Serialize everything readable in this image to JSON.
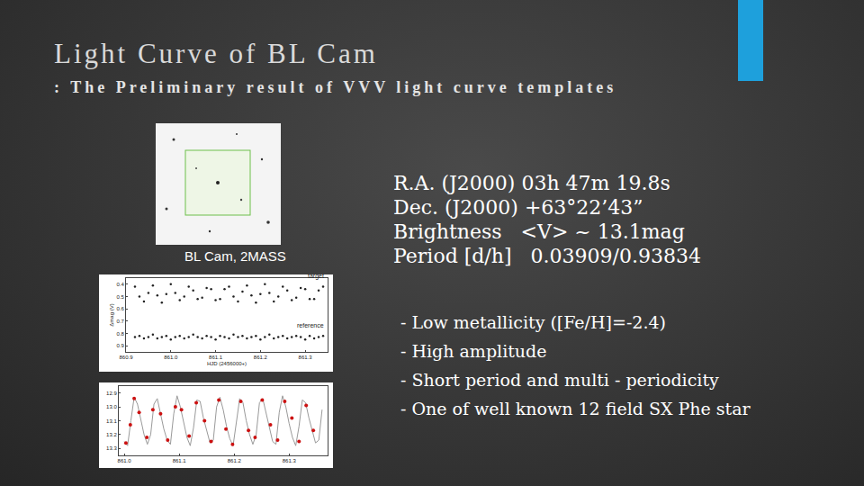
{
  "slide": {
    "title": "Light Curve of BL Cam",
    "subtitle": ": The Preliminary result of VVV light curve templates"
  },
  "finder_chart": {
    "caption": "BL Cam, 2MASS"
  },
  "info": [
    "R.A. (J2000) 03h 47m 19.8s",
    "Dec. (J2000) +63°22’43”",
    "Brightness   <V> ~ 13.1mag",
    "Period [d/h]   0.03909/0.93834"
  ],
  "bullets": [
    "- Low metallicity ([Fe/H]=-2.4)",
    "- High amplitude",
    "- Short period and multi - periodicity",
    "- One of well known 12 field SX Phe star"
  ],
  "chart_data": [
    {
      "type": "scatter",
      "x_label": "HJD (2456000+)",
      "y_label": "Δmag (V)",
      "x": [
        860.92,
        860.93,
        860.94,
        860.95,
        860.96,
        860.97,
        860.98,
        860.99,
        861,
        861.01,
        861.02,
        861.03,
        861.04,
        861.05,
        861.06,
        861.07,
        861.08,
        861.09,
        861.1,
        861.11,
        861.12,
        861.13,
        861.14,
        861.15,
        861.16,
        861.17,
        861.18,
        861.19,
        861.2,
        861.21,
        861.22,
        861.23,
        861.24,
        861.25,
        861.26,
        861.27,
        861.28,
        861.29,
        861.3,
        861.31,
        861.32,
        861.33,
        861.34
      ],
      "series": [
        {
          "name": "target",
          "color": "#222222",
          "marker": "circle",
          "values": [
            0.42,
            0.5,
            0.54,
            0.47,
            0.41,
            0.49,
            0.55,
            0.48,
            0.4,
            0.47,
            0.53,
            0.5,
            0.42,
            0.45,
            0.52,
            0.51,
            0.43,
            0.44,
            0.53,
            0.52,
            0.44,
            0.42,
            0.5,
            0.54,
            0.46,
            0.41,
            0.49,
            0.55,
            0.48,
            0.4,
            0.47,
            0.54,
            0.5,
            0.42,
            0.45,
            0.53,
            0.51,
            0.43,
            0.44,
            0.52,
            0.52,
            0.45,
            0.42
          ]
        },
        {
          "name": "reference",
          "color": "#222222",
          "marker": "circle",
          "values": [
            0.83,
            0.82,
            0.84,
            0.83,
            0.81,
            0.84,
            0.83,
            0.82,
            0.85,
            0.83,
            0.82,
            0.84,
            0.83,
            0.81,
            0.83,
            0.84,
            0.82,
            0.83,
            0.85,
            0.82,
            0.83,
            0.84,
            0.81,
            0.83,
            0.82,
            0.84,
            0.83,
            0.82,
            0.85,
            0.83,
            0.81,
            0.84,
            0.83,
            0.82,
            0.84,
            0.83,
            0.82,
            0.83,
            0.85,
            0.82,
            0.84,
            0.83,
            0.82
          ]
        }
      ],
      "xlim": [
        860.9,
        861.35
      ],
      "xticks": [
        860.9,
        {
          "value": 861,
          "label": "861.0"
        },
        861.1,
        861.2,
        861.3
      ],
      "ylim": [
        0.95,
        0.35
      ],
      "yticks": [
        0.4,
        0.5,
        0.6,
        0.7,
        0.8,
        0.9
      ],
      "grid": false
    },
    {
      "type": "scatter",
      "series": [
        {
          "type": "line",
          "color": "#9a9a9a",
          "line_style": "solid",
          "x": [
            861,
            861.006,
            861.012,
            861.018,
            861.024,
            861.03,
            861.036,
            861.042,
            861.048,
            861.054,
            861.06,
            861.066,
            861.072,
            861.078,
            861.084,
            861.09,
            861.096,
            861.102,
            861.108,
            861.114,
            861.12,
            861.126,
            861.132,
            861.138,
            861.144,
            861.15,
            861.156,
            861.162,
            861.168,
            861.174,
            861.18,
            861.186,
            861.192,
            861.198,
            861.204,
            861.21,
            861.216,
            861.222,
            861.228,
            861.234,
            861.24,
            861.246,
            861.252,
            861.258,
            861.264,
            861.27,
            861.276,
            861.282,
            861.288,
            861.294,
            861.3,
            861.306,
            861.312,
            861.318,
            861.324,
            861.33,
            861.336,
            861.342,
            861.348,
            861.354,
            861.36
          ],
          "values": [
            13.25,
            13.28,
            13.1,
            12.93,
            12.98,
            13.1,
            13.2,
            13.27,
            13.2,
            12.98,
            12.94,
            13.05,
            13.16,
            13.24,
            13.27,
            13.05,
            12.92,
            13.0,
            13.12,
            13.22,
            13.28,
            13.15,
            12.95,
            12.96,
            13.08,
            13.18,
            13.26,
            13.24,
            13.0,
            12.93,
            13.02,
            13.14,
            13.23,
            13.28,
            13.1,
            12.94,
            12.97,
            13.1,
            13.2,
            13.27,
            13.2,
            12.97,
            12.94,
            13.05,
            13.16,
            13.25,
            13.27,
            13.04,
            12.92,
            13.0,
            13.12,
            13.22,
            13.28,
            13.14,
            12.95,
            12.97,
            13.08,
            13.18,
            13.26,
            13.24,
            13.02
          ]
        },
        {
          "type": "scatter",
          "color": "#cc1111",
          "marker": "circle",
          "x": [
            861.003,
            861.011,
            861.018,
            861.027,
            861.041,
            861.052,
            861.066,
            861.079,
            861.093,
            861.104,
            861.118,
            861.131,
            861.146,
            861.158,
            861.172,
            861.185,
            861.197,
            861.212,
            861.226,
            861.238,
            861.251,
            861.266,
            861.279,
            861.292,
            861.305,
            861.318,
            861.331,
            861.344
          ],
          "values": [
            13.26,
            13.13,
            12.94,
            13.04,
            13.22,
            13.02,
            13.05,
            13.24,
            13.0,
            13.02,
            13.21,
            12.97,
            13.1,
            13.25,
            12.95,
            13.16,
            13.27,
            12.96,
            13.17,
            13.22,
            12.95,
            13.13,
            13.24,
            12.96,
            13.08,
            13.25,
            12.99,
            13.17
          ]
        }
      ],
      "xlim": [
        860.99,
        861.37
      ],
      "xticks": [
        {
          "value": 861,
          "label": "861.0"
        },
        861.1,
        861.2,
        861.3
      ],
      "ylim": [
        13.35,
        12.85
      ],
      "yticks": [
        12.9,
        {
          "value": 13,
          "label": "13.0"
        },
        13.1,
        13.2,
        13.3
      ],
      "grid": false
    }
  ]
}
